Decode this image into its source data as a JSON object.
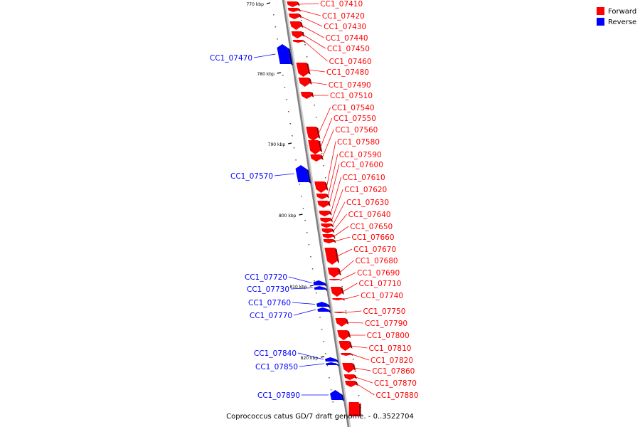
{
  "caption": "Coprococcus catus GD/7 draft genome. - 0..3522704",
  "legend": [
    {
      "label": "Forward",
      "color": "#ff0000"
    },
    {
      "label": "Reverse",
      "color": "#0000ff"
    }
  ],
  "colors": {
    "forward": "#ff0000",
    "reverse": "#0000ff",
    "backbone": "#808080"
  },
  "ticks": [
    {
      "label": "770 kbp",
      "kbp": 770
    },
    {
      "label": "780 kbp",
      "kbp": 780
    },
    {
      "label": "790 kbp",
      "kbp": 790
    },
    {
      "label": "800 kbp",
      "kbp": 800
    },
    {
      "label": "810 kbp",
      "kbp": 810
    },
    {
      "label": "820 kbp",
      "kbp": 820
    }
  ],
  "genes": [
    {
      "name": "CC1_07410",
      "strand": "+"
    },
    {
      "name": "CC1_07420",
      "strand": "+"
    },
    {
      "name": "CC1_07430",
      "strand": "+"
    },
    {
      "name": "CC1_07440",
      "strand": "+"
    },
    {
      "name": "CC1_07450",
      "strand": "+"
    },
    {
      "name": "CC1_07460",
      "strand": "+"
    },
    {
      "name": "CC1_07470",
      "strand": "-"
    },
    {
      "name": "CC1_07480",
      "strand": "+"
    },
    {
      "name": "CC1_07490",
      "strand": "+"
    },
    {
      "name": "CC1_07510",
      "strand": "+"
    },
    {
      "name": "CC1_07540",
      "strand": "+"
    },
    {
      "name": "CC1_07550",
      "strand": "+"
    },
    {
      "name": "CC1_07560",
      "strand": "+"
    },
    {
      "name": "CC1_07570",
      "strand": "-"
    },
    {
      "name": "CC1_07580",
      "strand": "+"
    },
    {
      "name": "CC1_07590",
      "strand": "+"
    },
    {
      "name": "CC1_07600",
      "strand": "+"
    },
    {
      "name": "CC1_07610",
      "strand": "+"
    },
    {
      "name": "CC1_07620",
      "strand": "+"
    },
    {
      "name": "CC1_07630",
      "strand": "+"
    },
    {
      "name": "CC1_07640",
      "strand": "+"
    },
    {
      "name": "CC1_07650",
      "strand": "+"
    },
    {
      "name": "CC1_07660",
      "strand": "+"
    },
    {
      "name": "CC1_07670",
      "strand": "+"
    },
    {
      "name": "CC1_07680",
      "strand": "+"
    },
    {
      "name": "CC1_07690",
      "strand": "+"
    },
    {
      "name": "CC1_07710",
      "strand": "+"
    },
    {
      "name": "CC1_07720",
      "strand": "-"
    },
    {
      "name": "CC1_07730",
      "strand": "-"
    },
    {
      "name": "CC1_07740",
      "strand": "+"
    },
    {
      "name": "CC1_07750",
      "strand": "+"
    },
    {
      "name": "CC1_07760",
      "strand": "-"
    },
    {
      "name": "CC1_07770",
      "strand": "-"
    },
    {
      "name": "CC1_07790",
      "strand": "+"
    },
    {
      "name": "CC1_07800",
      "strand": "+"
    },
    {
      "name": "CC1_07810",
      "strand": "+"
    },
    {
      "name": "CC1_07820",
      "strand": "+"
    },
    {
      "name": "CC1_07840",
      "strand": "-"
    },
    {
      "name": "CC1_07850",
      "strand": "-"
    },
    {
      "name": "CC1_07860",
      "strand": "+"
    },
    {
      "name": "CC1_07870",
      "strand": "+"
    },
    {
      "name": "CC1_07880",
      "strand": "+"
    },
    {
      "name": "CC1_07890",
      "strand": "-"
    }
  ]
}
